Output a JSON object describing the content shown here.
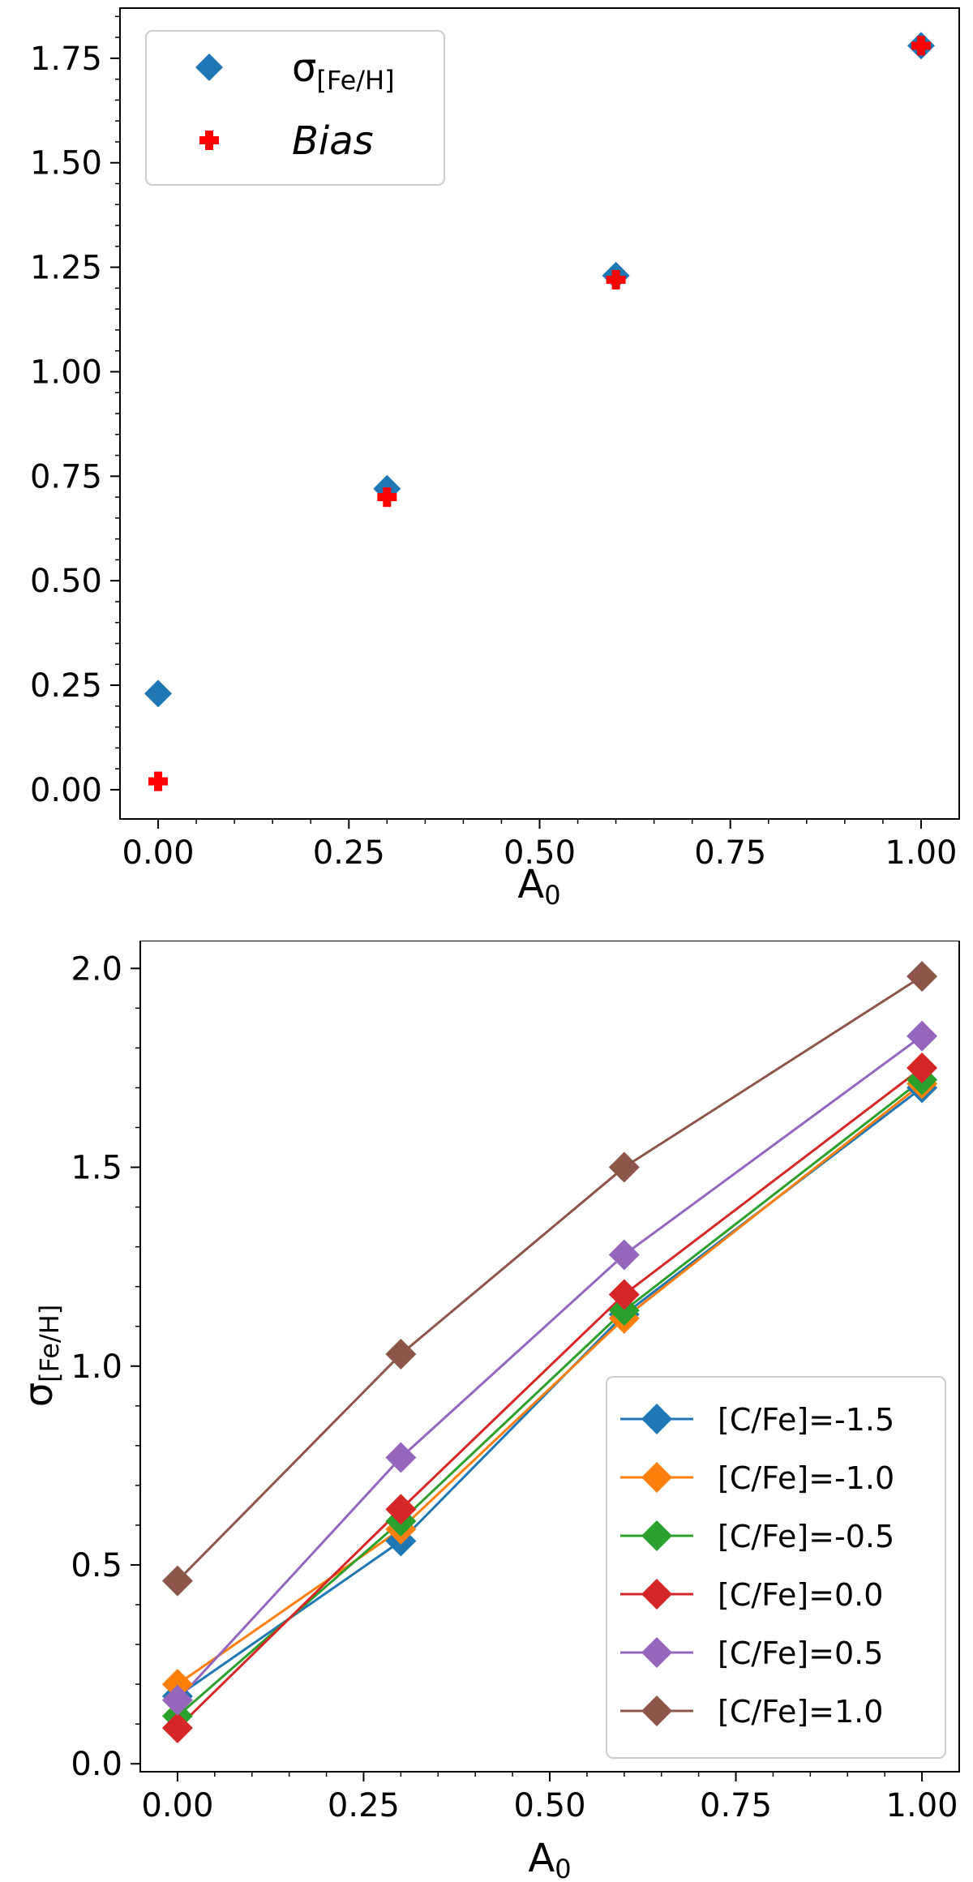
{
  "chart_data": [
    {
      "type": "scatter",
      "title": "",
      "xlabel_main": "A",
      "xlabel_sub": "0",
      "ylabel": "",
      "xlim": [
        -0.05,
        1.05
      ],
      "ylim": [
        -0.07,
        1.87
      ],
      "xticks": [
        0.0,
        0.25,
        0.5,
        0.75,
        1.0
      ],
      "xtick_labels": [
        "0.00",
        "0.25",
        "0.50",
        "0.75",
        "1.00"
      ],
      "yticks": [
        0.0,
        0.25,
        0.5,
        0.75,
        1.0,
        1.25,
        1.5,
        1.75
      ],
      "ytick_labels": [
        "0.00",
        "0.25",
        "0.50",
        "0.75",
        "1.00",
        "1.25",
        "1.50",
        "1.75"
      ],
      "legend_position": "top-left",
      "series": [
        {
          "name": "σ",
          "name_sub": "[Fe/H]",
          "marker": "diamond",
          "color": "#1f77b4",
          "x": [
            0.0,
            0.3,
            0.6,
            1.0
          ],
          "y": [
            0.23,
            0.72,
            1.23,
            1.78
          ]
        },
        {
          "name": "Bias",
          "marker": "plus",
          "color": "#ff0000",
          "x": [
            0.0,
            0.3,
            0.6,
            1.0
          ],
          "y": [
            0.02,
            0.7,
            1.22,
            1.78
          ]
        }
      ]
    },
    {
      "type": "line",
      "title": "",
      "xlabel_main": "A",
      "xlabel_sub": "0",
      "ylabel_main": "σ",
      "ylabel_sub": "[Fe/H]",
      "xlim": [
        -0.05,
        1.05
      ],
      "ylim": [
        -0.02,
        2.07
      ],
      "xticks": [
        0.0,
        0.25,
        0.5,
        0.75,
        1.0
      ],
      "xtick_labels": [
        "0.00",
        "0.25",
        "0.50",
        "0.75",
        "1.00"
      ],
      "yticks": [
        0.0,
        0.5,
        1.0,
        1.5,
        2.0
      ],
      "ytick_labels": [
        "0.0",
        "0.5",
        "1.0",
        "1.5",
        "2.0"
      ],
      "legend_position": "lower-right",
      "x": [
        0.0,
        0.3,
        0.6,
        1.0
      ],
      "series": [
        {
          "name": "[C/Fe]=-1.5",
          "color": "#1f77b4",
          "values": [
            0.17,
            0.56,
            1.13,
            1.7
          ]
        },
        {
          "name": "[C/Fe]=-1.0",
          "color": "#ff7f0e",
          "values": [
            0.2,
            0.59,
            1.12,
            1.71
          ]
        },
        {
          "name": "[C/Fe]=-0.5",
          "color": "#2ca02c",
          "values": [
            0.12,
            0.61,
            1.14,
            1.72
          ]
        },
        {
          "name": "[C/Fe]=0.0",
          "color": "#d62728",
          "values": [
            0.09,
            0.64,
            1.18,
            1.75
          ]
        },
        {
          "name": "[C/Fe]=0.5",
          "color": "#9467bd",
          "values": [
            0.16,
            0.77,
            1.28,
            1.83
          ]
        },
        {
          "name": "[C/Fe]=1.0",
          "color": "#8c564b",
          "values": [
            0.46,
            1.03,
            1.5,
            1.98
          ]
        }
      ]
    }
  ]
}
